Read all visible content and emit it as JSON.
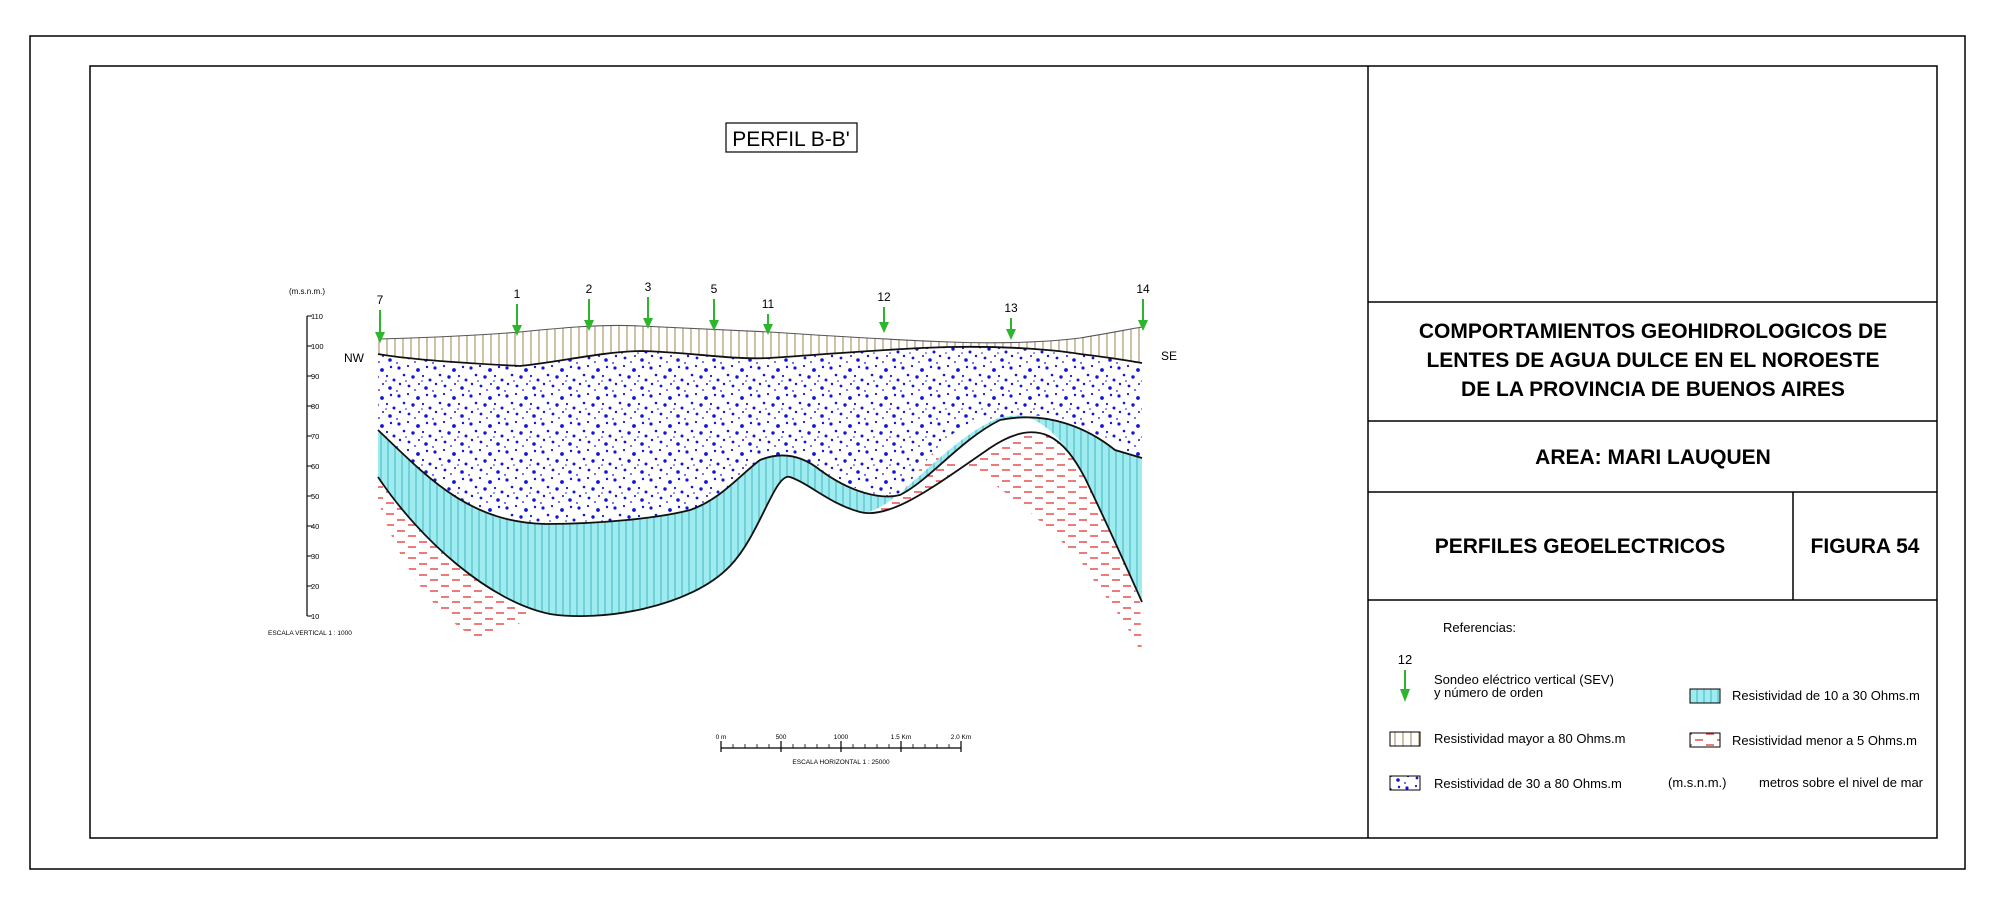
{
  "profile_title": "PERFIL B-B'",
  "directions": {
    "left": "NW",
    "right": "SE"
  },
  "vertical_axis": {
    "unit": "(m.s.n.m.)",
    "ticks": [
      "110",
      "100",
      "90",
      "80",
      "70",
      "60",
      "50",
      "40",
      "30",
      "20",
      "10"
    ],
    "scale_label": "ESCALA VERTICAL 1 : 1000"
  },
  "horizontal_scale": {
    "ticks": [
      "0 m",
      "500",
      "1000",
      "1.5 Km",
      "2.0 Km"
    ],
    "label": "ESCALA HORIZONTAL 1 : 25000"
  },
  "sev_numbers": [
    "7",
    "1",
    "2",
    "3",
    "5",
    "11",
    "12",
    "13",
    "14"
  ],
  "title_block": {
    "title_lines": [
      "COMPORTAMIENTOS GEOHIDROLOGICOS DE",
      "LENTES DE AGUA DULCE EN EL NOROESTE",
      "DE LA PROVINCIA DE BUENOS AIRES"
    ],
    "area": "AREA: MARI LAUQUEN",
    "section": "PERFILES GEOELECTRICOS",
    "figure": "FIGURA 54"
  },
  "legend": {
    "heading": "Referencias:",
    "sev_number": "12",
    "sev_line1": "Sondeo eléctrico vertical (SEV)",
    "sev_line2": "y número de orden",
    "res_10_30": "Resistividad de 10 a 30 Ohms.m",
    "res_gt80": "Resistividad mayor a 80 Ohms.m",
    "res_lt5": "Resistividad menor a 5 Ohms.m",
    "res_30_80": "Resistividad de 30 a 80 Ohms.m",
    "msnm_abbr": "(m.s.n.m.)",
    "msnm_text": "metros sobre el nivel de mar"
  },
  "colors": {
    "tan": "#b69a6a",
    "blue_dots": "#1414d6",
    "cyan": "#9fecf0",
    "cyan_line": "#2fa8b4",
    "red_dash": "#e84040",
    "green_arrow": "#2db52d"
  }
}
